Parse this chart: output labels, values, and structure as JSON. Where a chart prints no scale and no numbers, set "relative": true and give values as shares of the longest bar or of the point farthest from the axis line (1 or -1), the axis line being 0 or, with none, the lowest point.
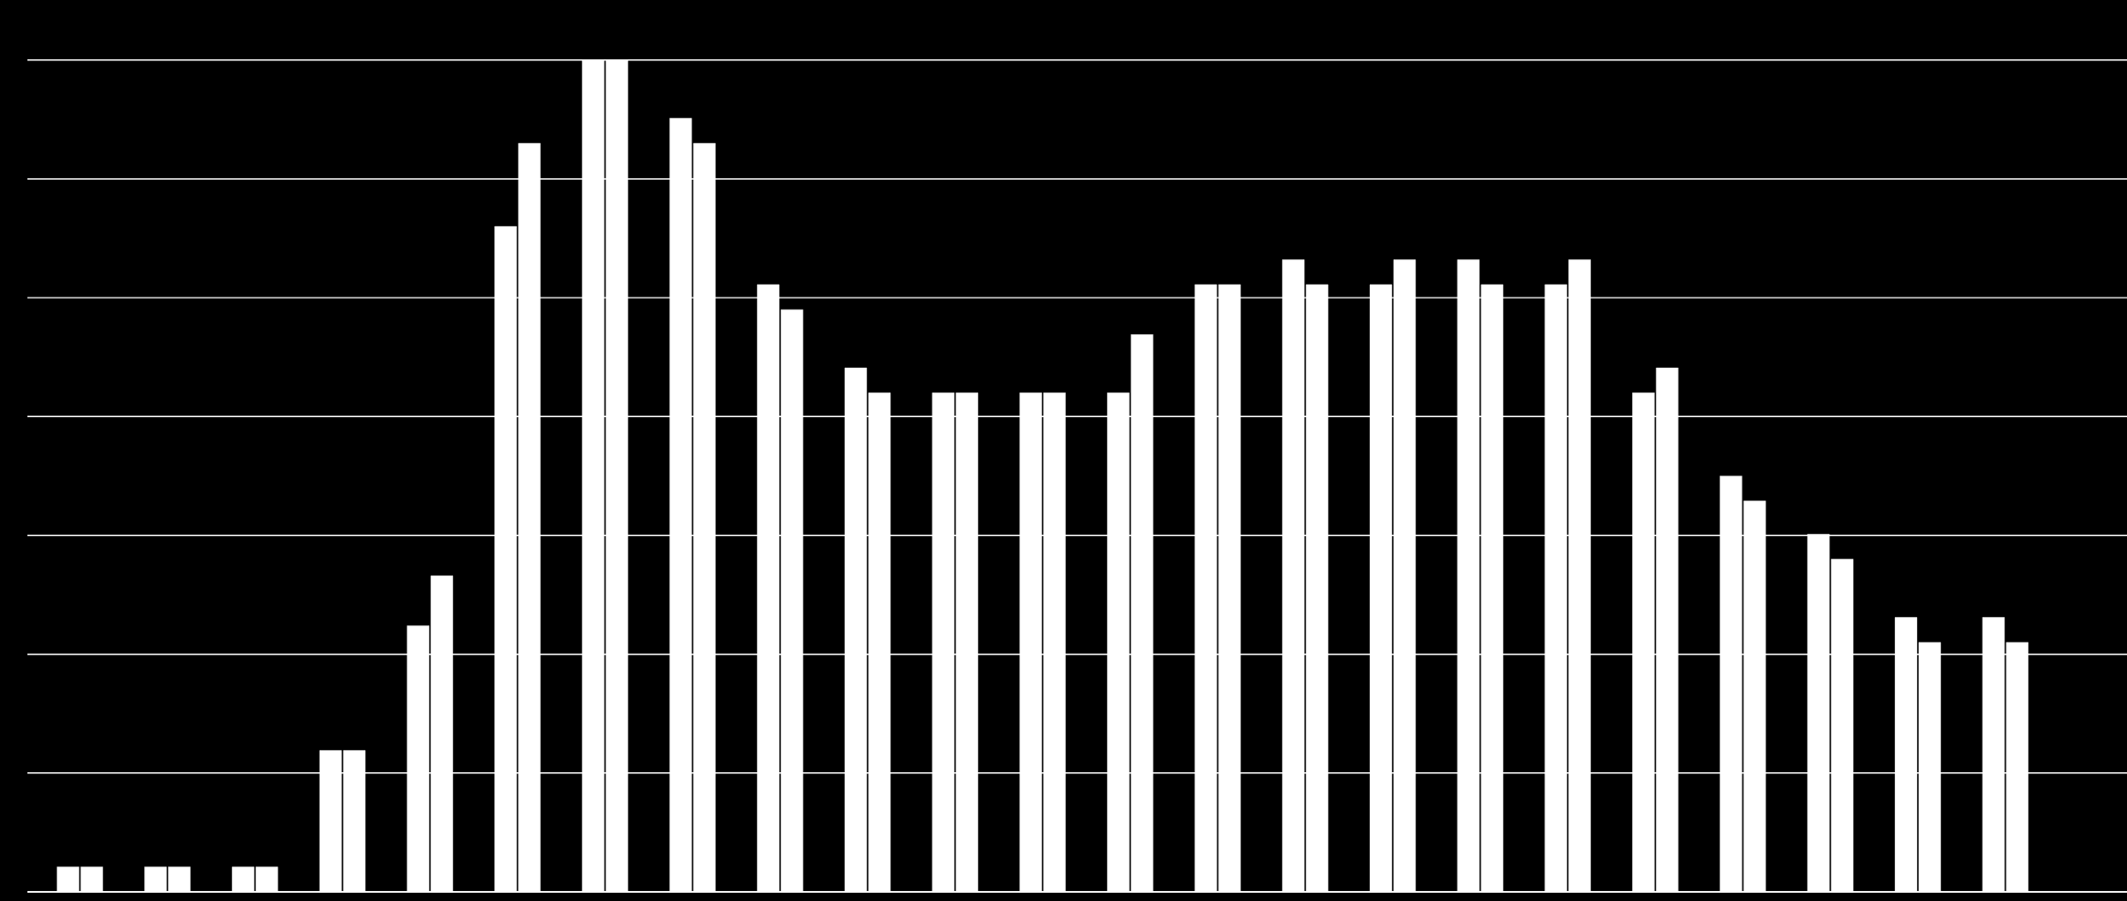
{
  "chart_data": {
    "type": "bar",
    "relative": true,
    "grid": "y",
    "categories": [
      null,
      null,
      null,
      null,
      null,
      null,
      null,
      null,
      null,
      null,
      null,
      null,
      null,
      null,
      null,
      null,
      null,
      null,
      null,
      null,
      null,
      null,
      null
    ],
    "series": [
      {
        "color": "#ffffff",
        "values": [
          0.03,
          0.03,
          0.03,
          0.17,
          0.32,
          0.8,
          1,
          0.93,
          0.73,
          0.63,
          0.6,
          0.6,
          0.6,
          0.73,
          0.76,
          0.73,
          0.76,
          0.73,
          0.6,
          0.5,
          0.43,
          0.33,
          0.33
        ]
      },
      {
        "color": "#ffffff",
        "values": [
          0.03,
          0.03,
          0.03,
          0.17,
          0.38,
          0.9,
          1,
          0.9,
          0.7,
          0.6,
          0.6,
          0.6,
          0.67,
          0.73,
          0.73,
          0.76,
          0.73,
          0.76,
          0.63,
          0.47,
          0.4,
          0.3,
          0.3
        ]
      }
    ]
  }
}
